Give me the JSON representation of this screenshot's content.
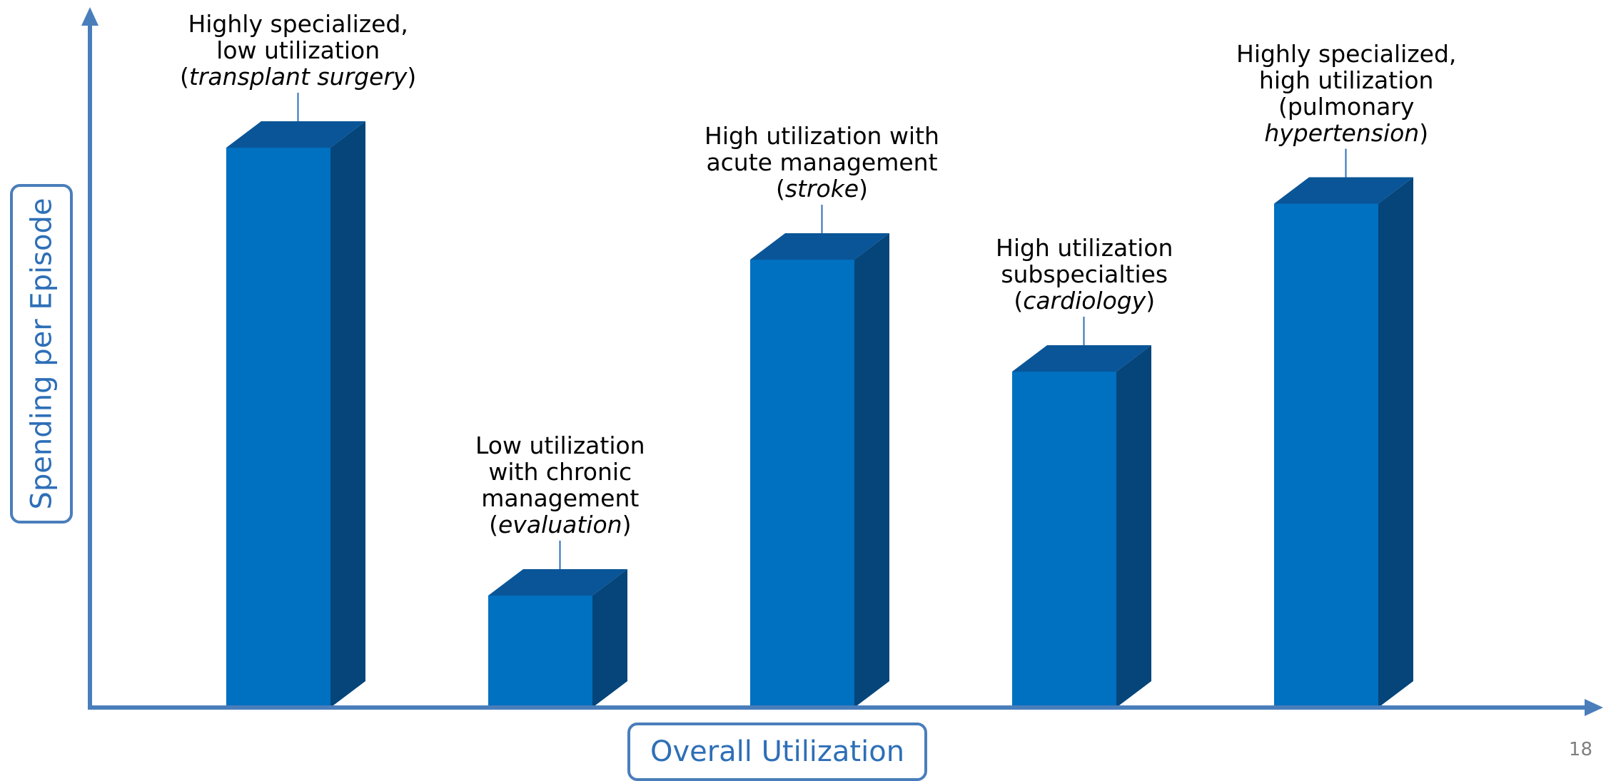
{
  "chart_data": {
    "type": "bar",
    "style": "3d-column",
    "title": "",
    "xlabel": "Overall Utilization",
    "ylabel": "Spending per Episode",
    "ylim": [
      0,
      100
    ],
    "grid": false,
    "legend": "none",
    "categories": [
      "transplant surgery",
      "evaluation",
      "stroke",
      "cardiology",
      "pulmonary hypertension"
    ],
    "values": [
      100,
      20,
      80,
      60,
      90
    ],
    "annotations": [
      {
        "lines": [
          "Highly specialized,",
          "low utilization"
        ],
        "pre": "(",
        "em": "transplant surgery",
        "post": ")"
      },
      {
        "lines": [
          "Low utilization",
          "with chronic",
          "management"
        ],
        "pre": "(",
        "em": "evaluation",
        "post": ")"
      },
      {
        "lines": [
          "High utilization with",
          "acute management"
        ],
        "pre": "(",
        "em": "stroke",
        "post": ")"
      },
      {
        "lines": [
          "High utilization",
          "subspecialties"
        ],
        "pre": "(",
        "em": "cardiology",
        "post": ")"
      },
      {
        "lines": [
          "Highly specialized,",
          "high utilization",
          "(pulmonary"
        ],
        "pre": "",
        "em": "hypertension",
        "post": ")"
      }
    ],
    "colors": {
      "bar_front": "#0070c0",
      "bar_top": "#0a5597",
      "bar_side": "#05457a",
      "axis": "#4a7ebb",
      "label_text": "#2e6fb7"
    }
  },
  "page_number": "18"
}
